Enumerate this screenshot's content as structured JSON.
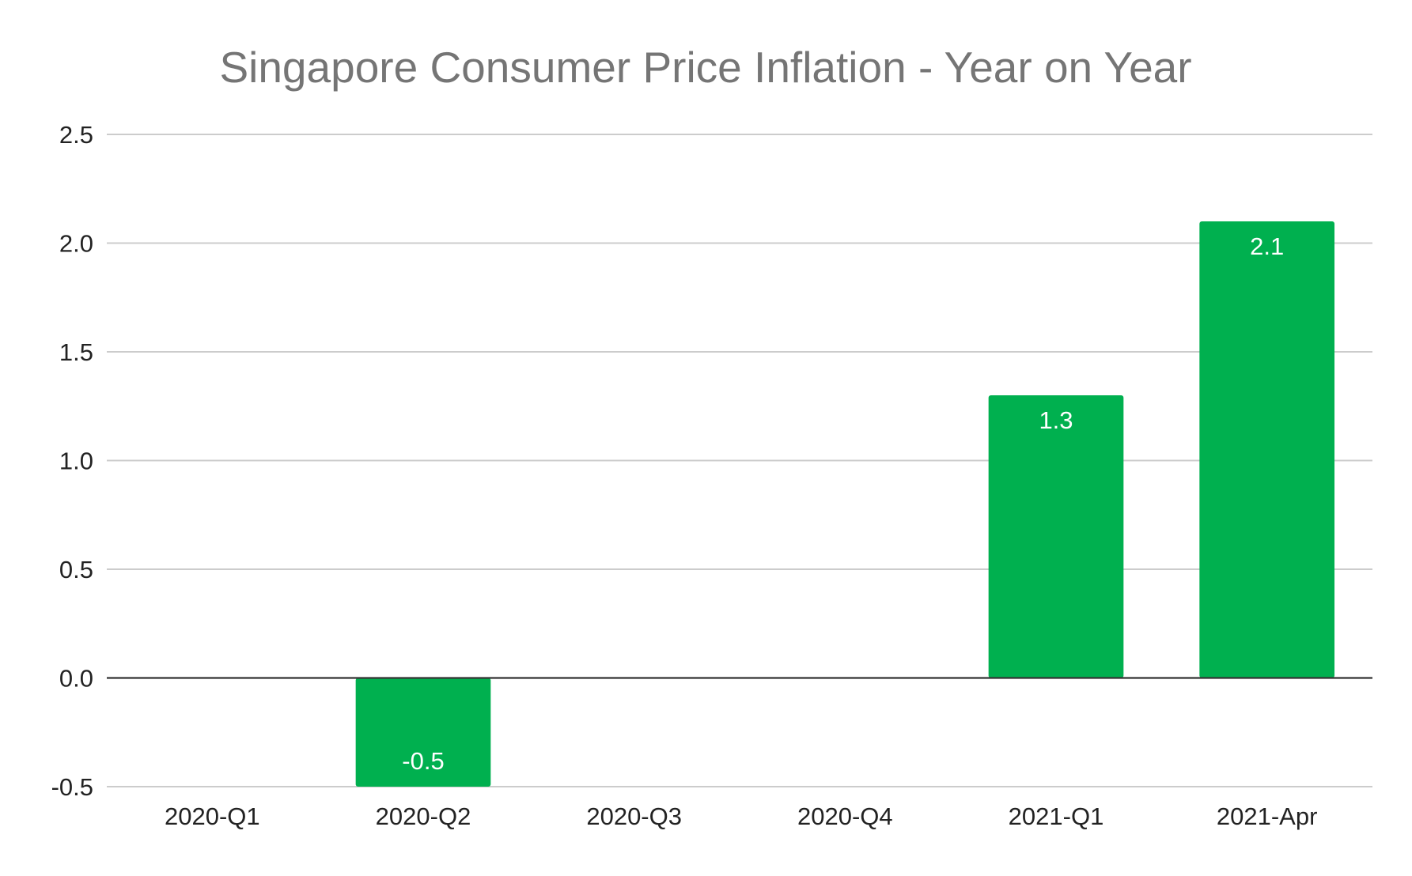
{
  "chart_data": {
    "type": "bar",
    "title": "Singapore Consumer Price Inflation - Year on Year",
    "xlabel": "",
    "ylabel": "",
    "categories": [
      "2020-Q1",
      "2020-Q2",
      "2020-Q3",
      "2020-Q4",
      "2021-Q1",
      "2021-Apr"
    ],
    "values": [
      0,
      -0.5,
      0,
      0,
      1.3,
      2.1
    ],
    "data_labels": [
      "",
      "-0.5",
      "",
      "",
      "1.3",
      "2.1"
    ],
    "ylim": [
      -0.5,
      2.5
    ],
    "yticks": [
      "2.5",
      "2.0",
      "1.5",
      "1.0",
      "0.5",
      "0.0",
      "-0.5"
    ],
    "ytick_values": [
      2.5,
      2.0,
      1.5,
      1.0,
      0.5,
      0.0,
      -0.5
    ],
    "grid": true,
    "legend": "none",
    "bar_color": "#00b04f",
    "title_color": "#757575",
    "gridline_color": "#cccccc",
    "zero_line_color": "#333333"
  }
}
